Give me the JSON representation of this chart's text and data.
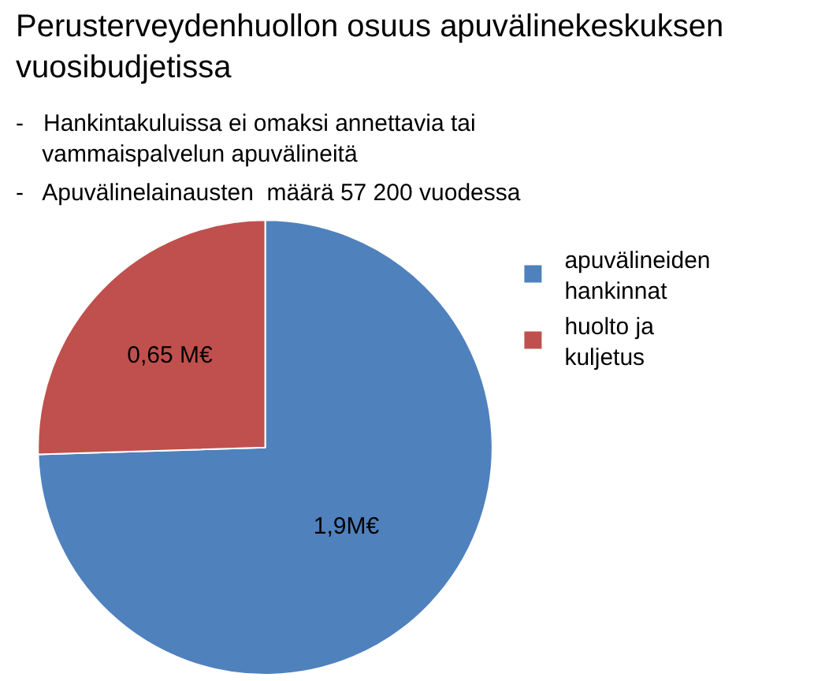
{
  "chart_data": {
    "type": "pie",
    "title": "Perusterveydenhuollon osuus apuvälinekeskuksen vuosibudjetissa",
    "annotations": [
      "-   Hankintakuluissa ei omaksi annettavia tai vammaispalvelun apuvälineitä",
      "-   Apuvälinelainausten  määrä 57 200 vuodessa"
    ],
    "categories": [
      "apuvälineiden hankinnat",
      "huolto ja kuljetus"
    ],
    "values": [
      1.9,
      0.65
    ],
    "value_labels": [
      "1,9M€",
      "0,65 M€"
    ],
    "colors": [
      "#4f81bd",
      "#c0504d"
    ],
    "legend": "right"
  }
}
